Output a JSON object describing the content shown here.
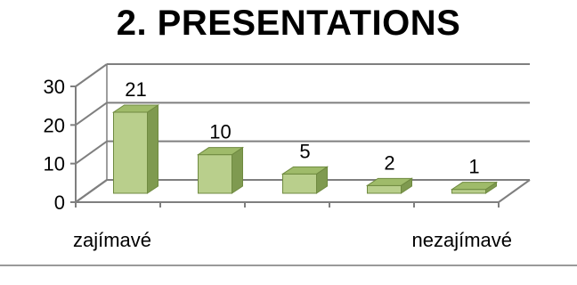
{
  "title": "2. PRESENTATIONS",
  "colors": {
    "bar_front": "#b9cf8c",
    "bar_side": "#7f9a50",
    "bar_top": "#9fbb6a",
    "bar_edge": "#6f8a40",
    "grid": "#7f7f7f",
    "text": "#000000",
    "rule": "#9a9a9a"
  },
  "chart_data": {
    "type": "bar",
    "style": "3d-column",
    "title": "2. PRESENTATIONS",
    "categories": [
      "zajímavé",
      "",
      "",
      "",
      "nezajímavé"
    ],
    "values": [
      21,
      10,
      5,
      2,
      1
    ],
    "data_labels": [
      "21",
      "10",
      "5",
      "2",
      "1"
    ],
    "ylim": [
      0,
      30
    ],
    "yticks": [
      0,
      10,
      20,
      30
    ],
    "xlabel": "",
    "ylabel": "",
    "grid": true,
    "legend": "none"
  }
}
